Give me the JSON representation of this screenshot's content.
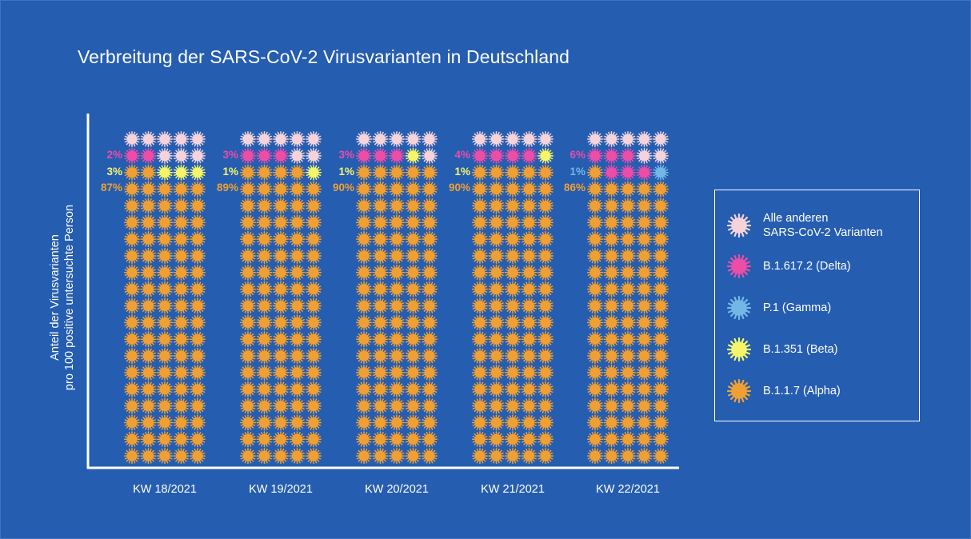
{
  "title": "Verbreitung der SARS-CoV-2 Virusvarianten in Deutschland",
  "colors": {
    "background": "#255DB1",
    "axis": "#ffffff",
    "other": "#F4D3DB",
    "delta": "#EB4DA7",
    "gamma": "#73B7E6",
    "beta": "#F5F56A",
    "alpha": "#F0A033"
  },
  "chart_data": {
    "type": "waffle",
    "title": "Verbreitung der SARS-CoV-2 Virusvarianten in Deutschland",
    "ylabel": [
      "Anteil der Virusvarianten",
      "pro 100 positive untersuchte Person"
    ],
    "grid": {
      "rows": 20,
      "cols": 5,
      "total": 100
    },
    "categories": [
      "KW 18/2021",
      "KW 19/2021",
      "KW 20/2021",
      "KW 21/2021",
      "KW 22/2021"
    ],
    "series": [
      {
        "key": "alpha",
        "name": "B.1.1.7 (Alpha)",
        "values": [
          87,
          89,
          90,
          90,
          86
        ]
      },
      {
        "key": "beta",
        "name": "B.1.351 (Beta)",
        "values": [
          3,
          1,
          1,
          1,
          0
        ]
      },
      {
        "key": "gamma",
        "name": "P.1 (Gamma)",
        "values": [
          0,
          0,
          0,
          0,
          1
        ]
      },
      {
        "key": "delta",
        "name": "B.1.617.2 (Delta)",
        "values": [
          2,
          3,
          3,
          4,
          6
        ]
      },
      {
        "key": "other",
        "name": "Alle anderen SARS-CoV-2 Varianten",
        "values": [
          8,
          7,
          6,
          5,
          7
        ]
      }
    ],
    "data_labels": [
      [
        {
          "key": "delta",
          "text": "2%"
        },
        {
          "key": "beta",
          "text": "3%"
        },
        {
          "key": "alpha",
          "text": "87%"
        }
      ],
      [
        {
          "key": "delta",
          "text": "3%"
        },
        {
          "key": "beta",
          "text": "1%"
        },
        {
          "key": "alpha",
          "text": "89%"
        }
      ],
      [
        {
          "key": "delta",
          "text": "3%"
        },
        {
          "key": "beta",
          "text": "1%"
        },
        {
          "key": "alpha",
          "text": "90%"
        }
      ],
      [
        {
          "key": "delta",
          "text": "4%"
        },
        {
          "key": "beta",
          "text": "1%"
        },
        {
          "key": "alpha",
          "text": "90%"
        }
      ],
      [
        {
          "key": "delta",
          "text": "6%"
        },
        {
          "key": "gamma",
          "text": "1%"
        },
        {
          "key": "alpha",
          "text": "86%"
        }
      ]
    ]
  },
  "legend": {
    "items": [
      {
        "key": "other",
        "lines": [
          "Alle anderen",
          "SARS-CoV-2 Varianten"
        ]
      },
      {
        "key": "delta",
        "lines": [
          "B.1.617.2 (Delta)"
        ]
      },
      {
        "key": "gamma",
        "lines": [
          "P.1 (Gamma)"
        ]
      },
      {
        "key": "beta",
        "lines": [
          "B.1.351 (Beta)"
        ]
      },
      {
        "key": "alpha",
        "lines": [
          "B.1.1.7 (Alpha)"
        ]
      }
    ]
  }
}
